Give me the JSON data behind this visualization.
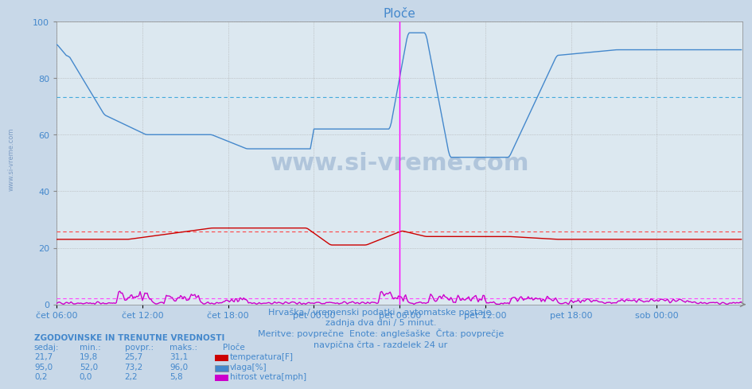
{
  "title": "Ploče",
  "bg_color": "#c8d8e8",
  "plot_bg_color": "#dce8f0",
  "xlim_n": 576,
  "ylim": [
    0,
    100
  ],
  "yticks": [
    0,
    20,
    40,
    60,
    80,
    100
  ],
  "xtick_positions": [
    0,
    72,
    144,
    216,
    288,
    360,
    432,
    504
  ],
  "xtick_labels": [
    "čet 06:00",
    "čet 12:00",
    "čet 18:00",
    "pet 00:00",
    "pet 06:00",
    "pet 12:00",
    "pet 18:00",
    "sob 00:00"
  ],
  "avg_temp": 25.7,
  "avg_vlaga": 73.2,
  "avg_veter": 2.2,
  "vertical_line_x": 288,
  "color_temp": "#cc0000",
  "color_vlaga": "#4488cc",
  "color_veter": "#cc00cc",
  "color_avg_temp": "#ff4444",
  "color_avg_vlaga": "#44aadd",
  "color_avg_veter": "#ff44ff",
  "footer_line1": "Hrvaška / vremenski podatki - avtomatske postaje.",
  "footer_line2": "zadnja dva dni / 5 minut.",
  "footer_line3": "Meritve: povprečne  Enote: anglešaške  Črta: povprečje",
  "footer_line4": "navpična črta - razdelek 24 ur",
  "legend_header": "ZGODOVINSKE IN TRENUTNE VREDNOSTI",
  "col_headers": [
    "sedaj:",
    "min.:",
    "povpr.:",
    "maks.:",
    "Ploče"
  ],
  "row1_vals": [
    "21,7",
    "19,8",
    "25,7",
    "31,1"
  ],
  "row1_label": "temperatura[F]",
  "row2_vals": [
    "95,0",
    "52,0",
    "73,2",
    "96,0"
  ],
  "row2_label": "vlaga[%]",
  "row3_vals": [
    "0,2",
    "0,0",
    "2,2",
    "5,8"
  ],
  "row3_label": "hitrost vetra[mph]",
  "watermark": "www.si-vreme.com"
}
